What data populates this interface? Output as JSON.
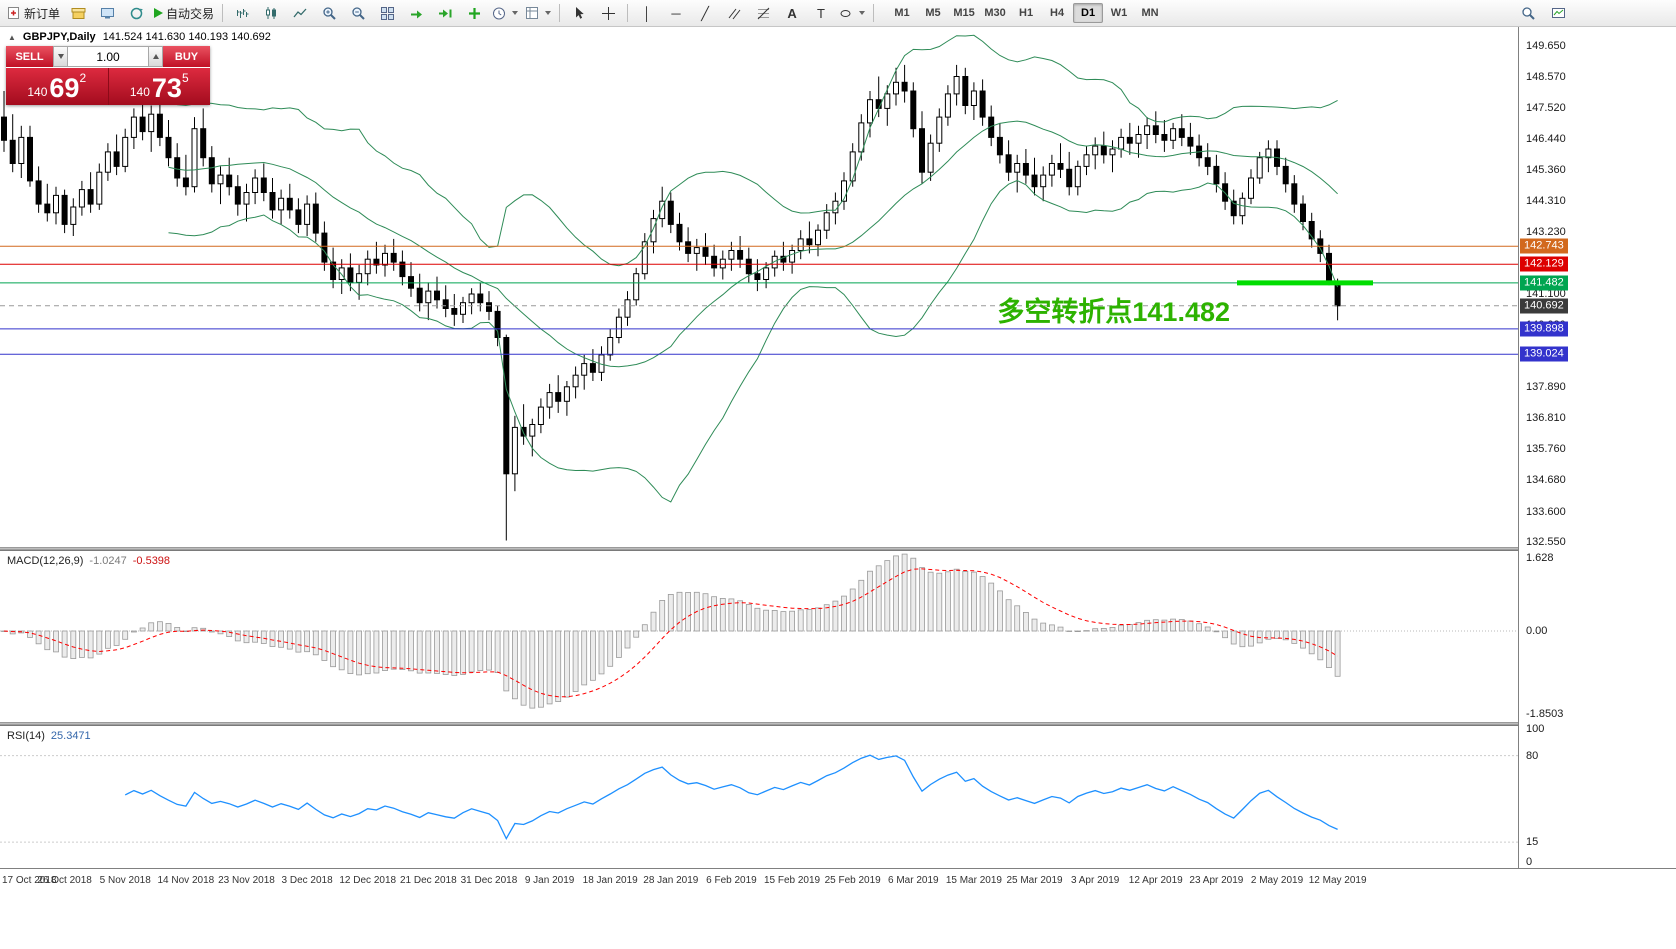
{
  "toolbar": {
    "new_order_label": "新订单",
    "auto_trading_label": "自动交易",
    "timeframes": [
      "M1",
      "M5",
      "M15",
      "M30",
      "H1",
      "H4",
      "D1",
      "W1",
      "MN"
    ],
    "active_timeframe": "D1"
  },
  "chart": {
    "symbol_title": "GBPJPY,Daily",
    "ohlc_text": "141.524 141.630 140.193 140.692",
    "annotation": {
      "text": "多空转折点141.482",
      "color": "#2db200"
    },
    "levels": [
      {
        "price": 142.743,
        "label": "142.743",
        "color": "#d2691e",
        "style": "solid"
      },
      {
        "price": 142.129,
        "label": "142.129",
        "color": "#dd0000",
        "style": "solid"
      },
      {
        "price": 141.482,
        "label": "141.482",
        "color": "#00a551",
        "style": "solid"
      },
      {
        "price": 140.692,
        "label": "140.692",
        "color": "#3b3b3b",
        "style": "dashed",
        "line_color": "#999999"
      },
      {
        "price": 139.898,
        "label": "139.898",
        "color": "#3333cc",
        "style": "solid"
      },
      {
        "price": 139.024,
        "label": "139.024",
        "color": "#3333cc",
        "style": "solid"
      }
    ],
    "highlight_segment": {
      "price": 141.482,
      "color": "#00dd00"
    },
    "y_axis_labels": [
      "149.650",
      "148.570",
      "147.520",
      "146.440",
      "145.360",
      "144.310",
      "143.230",
      "142.150",
      "141.100",
      "140.020",
      "138.940",
      "137.890",
      "136.810",
      "135.760",
      "134.680",
      "133.600",
      "132.550"
    ]
  },
  "trade_panel": {
    "sell_label": "SELL",
    "buy_label": "BUY",
    "volume": "1.00",
    "sell_price": {
      "prefix": "140",
      "big": "69",
      "sup": "2"
    },
    "buy_price": {
      "prefix": "140",
      "big": "73",
      "sup": "5"
    }
  },
  "macd": {
    "name": "MACD(12,26,9)",
    "main_value": "-1.0247",
    "signal_value": "-0.5398",
    "axis": [
      "1.628",
      "0.00",
      "-1.8503"
    ]
  },
  "rsi": {
    "name": "RSI(14)",
    "value": "25.3471",
    "axis": [
      "100",
      "80",
      "15",
      "0"
    ]
  },
  "chart_data": {
    "type": "candlestick",
    "symbol": "GBPJPY",
    "timeframe": "Daily",
    "y_range": [
      132.55,
      149.65
    ],
    "bars_per_label": 7,
    "x_labels": [
      "17 Oct 2018",
      "26 Oct 2018",
      "5 Nov 2018",
      "14 Nov 2018",
      "23 Nov 2018",
      "3 Dec 2018",
      "12 Dec 2018",
      "21 Dec 2018",
      "31 Dec 2018",
      "9 Jan 2019",
      "18 Jan 2019",
      "28 Jan 2019",
      "6 Feb 2019",
      "15 Feb 2019",
      "25 Feb 2019",
      "6 Mar 2019",
      "15 Mar 2019",
      "25 Mar 2019",
      "3 Apr 2019",
      "12 Apr 2019",
      "23 Apr 2019",
      "2 May 2019",
      "12 May 2019"
    ],
    "candles": [
      [
        147.2,
        148.1,
        146.0,
        146.4
      ],
      [
        146.4,
        147.3,
        145.3,
        145.6
      ],
      [
        145.6,
        146.9,
        145.1,
        146.5
      ],
      [
        146.5,
        146.9,
        144.8,
        145.0
      ],
      [
        145.0,
        145.5,
        143.9,
        144.2
      ],
      [
        144.2,
        144.9,
        143.6,
        143.9
      ],
      [
        143.9,
        144.8,
        143.5,
        144.5
      ],
      [
        144.5,
        144.7,
        143.2,
        143.5
      ],
      [
        143.5,
        144.4,
        143.1,
        144.1
      ],
      [
        144.1,
        145.0,
        143.8,
        144.7
      ],
      [
        144.7,
        145.3,
        143.9,
        144.2
      ],
      [
        144.2,
        145.6,
        144.0,
        145.3
      ],
      [
        145.3,
        146.3,
        145.0,
        146.0
      ],
      [
        146.0,
        146.6,
        145.2,
        145.5
      ],
      [
        145.5,
        146.8,
        145.3,
        146.5
      ],
      [
        146.5,
        147.5,
        146.1,
        147.2
      ],
      [
        147.2,
        147.9,
        146.4,
        146.7
      ],
      [
        146.7,
        147.6,
        146.0,
        147.3
      ],
      [
        147.3,
        147.8,
        146.2,
        146.5
      ],
      [
        146.5,
        147.1,
        145.5,
        145.8
      ],
      [
        145.8,
        146.3,
        144.8,
        145.1
      ],
      [
        145.1,
        145.9,
        144.5,
        144.8
      ],
      [
        144.8,
        147.2,
        144.6,
        146.8
      ],
      [
        146.8,
        147.5,
        145.5,
        145.8
      ],
      [
        145.8,
        146.2,
        144.6,
        144.9
      ],
      [
        144.9,
        145.5,
        144.2,
        145.2
      ],
      [
        145.2,
        145.8,
        144.5,
        144.8
      ],
      [
        144.8,
        145.2,
        143.8,
        144.2
      ],
      [
        144.2,
        144.9,
        143.6,
        144.6
      ],
      [
        144.6,
        145.4,
        144.2,
        145.1
      ],
      [
        145.1,
        145.6,
        144.3,
        144.6
      ],
      [
        144.6,
        145.1,
        143.7,
        144.0
      ],
      [
        144.0,
        144.7,
        143.5,
        144.4
      ],
      [
        144.4,
        144.9,
        143.7,
        144.0
      ],
      [
        144.0,
        144.4,
        143.2,
        143.5
      ],
      [
        143.5,
        144.5,
        143.1,
        144.2
      ],
      [
        144.2,
        144.6,
        142.9,
        143.2
      ],
      [
        143.2,
        143.6,
        141.9,
        142.2
      ],
      [
        142.2,
        142.7,
        141.3,
        141.6
      ],
      [
        141.6,
        142.3,
        141.1,
        142.0
      ],
      [
        142.0,
        142.5,
        141.2,
        141.5
      ],
      [
        141.5,
        142.1,
        140.9,
        141.8
      ],
      [
        141.8,
        142.6,
        141.4,
        142.3
      ],
      [
        142.3,
        142.9,
        141.8,
        142.1
      ],
      [
        142.1,
        142.8,
        141.7,
        142.5
      ],
      [
        142.5,
        143.0,
        141.9,
        142.2
      ],
      [
        142.2,
        142.6,
        141.4,
        141.7
      ],
      [
        141.7,
        142.2,
        141.0,
        141.3
      ],
      [
        141.3,
        141.8,
        140.5,
        140.8
      ],
      [
        140.8,
        141.5,
        140.2,
        141.2
      ],
      [
        141.2,
        141.7,
        140.6,
        140.9
      ],
      [
        140.9,
        141.4,
        140.3,
        140.6
      ],
      [
        140.6,
        141.1,
        140.0,
        140.4
      ],
      [
        140.4,
        141.0,
        140.1,
        140.8
      ],
      [
        140.8,
        141.3,
        140.4,
        141.1
      ],
      [
        141.1,
        141.5,
        140.5,
        140.8
      ],
      [
        140.8,
        141.2,
        140.2,
        140.5
      ],
      [
        140.5,
        140.7,
        139.3,
        139.6
      ],
      [
        139.6,
        139.7,
        132.6,
        134.9
      ],
      [
        134.9,
        136.9,
        134.3,
        136.5
      ],
      [
        136.5,
        137.3,
        135.9,
        136.2
      ],
      [
        136.2,
        136.8,
        135.5,
        136.6
      ],
      [
        136.6,
        137.5,
        136.3,
        137.2
      ],
      [
        137.2,
        138.0,
        136.8,
        137.7
      ],
      [
        137.7,
        138.3,
        137.0,
        137.4
      ],
      [
        137.4,
        138.1,
        136.9,
        137.9
      ],
      [
        137.9,
        138.6,
        137.5,
        138.3
      ],
      [
        138.3,
        139.0,
        137.8,
        138.7
      ],
      [
        138.7,
        139.2,
        138.1,
        138.4
      ],
      [
        138.4,
        139.3,
        138.1,
        139.0
      ],
      [
        139.0,
        139.9,
        138.8,
        139.6
      ],
      [
        139.6,
        140.6,
        139.4,
        140.3
      ],
      [
        140.3,
        141.2,
        140.0,
        140.9
      ],
      [
        140.9,
        142.0,
        140.7,
        141.8
      ],
      [
        141.8,
        143.2,
        141.6,
        142.9
      ],
      [
        142.9,
        144.0,
        142.5,
        143.7
      ],
      [
        143.7,
        144.8,
        143.4,
        144.3
      ],
      [
        144.3,
        144.6,
        143.2,
        143.5
      ],
      [
        143.5,
        143.9,
        142.6,
        142.9
      ],
      [
        142.9,
        143.4,
        142.2,
        142.5
      ],
      [
        142.5,
        143.0,
        141.9,
        142.7
      ],
      [
        142.7,
        143.2,
        142.1,
        142.4
      ],
      [
        142.4,
        142.8,
        141.7,
        142.0
      ],
      [
        142.0,
        142.6,
        141.6,
        142.3
      ],
      [
        142.3,
        142.9,
        141.9,
        142.6
      ],
      [
        142.6,
        143.1,
        142.0,
        142.3
      ],
      [
        142.3,
        142.7,
        141.5,
        141.8
      ],
      [
        141.8,
        142.3,
        141.2,
        141.6
      ],
      [
        141.6,
        142.2,
        141.3,
        142.0
      ],
      [
        142.0,
        142.6,
        141.7,
        142.4
      ],
      [
        142.4,
        142.9,
        141.9,
        142.2
      ],
      [
        142.2,
        142.8,
        141.8,
        142.6
      ],
      [
        142.6,
        143.3,
        142.3,
        143.0
      ],
      [
        143.0,
        143.6,
        142.5,
        142.8
      ],
      [
        142.8,
        143.5,
        142.4,
        143.3
      ],
      [
        143.3,
        144.2,
        143.0,
        143.9
      ],
      [
        143.9,
        144.6,
        143.5,
        144.3
      ],
      [
        144.3,
        145.3,
        144.0,
        145.0
      ],
      [
        145.0,
        146.3,
        144.8,
        146.0
      ],
      [
        146.0,
        147.3,
        145.7,
        147.0
      ],
      [
        147.0,
        148.1,
        146.5,
        147.8
      ],
      [
        147.8,
        148.6,
        147.2,
        147.5
      ],
      [
        147.5,
        148.3,
        146.9,
        148.0
      ],
      [
        148.0,
        148.9,
        147.6,
        148.4
      ],
      [
        148.4,
        149.0,
        147.7,
        148.1
      ],
      [
        148.1,
        148.4,
        146.5,
        146.8
      ],
      [
        146.8,
        147.4,
        144.9,
        145.3
      ],
      [
        145.3,
        146.6,
        145.0,
        146.3
      ],
      [
        146.3,
        147.5,
        146.0,
        147.2
      ],
      [
        147.2,
        148.3,
        146.9,
        148.0
      ],
      [
        148.0,
        149.0,
        147.6,
        148.6
      ],
      [
        148.6,
        148.9,
        147.3,
        147.6
      ],
      [
        147.6,
        148.4,
        147.1,
        148.1
      ],
      [
        148.1,
        148.5,
        146.9,
        147.2
      ],
      [
        147.2,
        147.6,
        146.2,
        146.5
      ],
      [
        146.5,
        147.0,
        145.6,
        145.9
      ],
      [
        145.9,
        146.4,
        145.0,
        145.3
      ],
      [
        145.3,
        145.9,
        144.6,
        145.6
      ],
      [
        145.6,
        146.1,
        144.9,
        145.2
      ],
      [
        145.2,
        145.8,
        144.5,
        144.8
      ],
      [
        144.8,
        145.5,
        144.3,
        145.2
      ],
      [
        145.2,
        145.9,
        144.8,
        145.6
      ],
      [
        145.6,
        146.3,
        145.1,
        145.4
      ],
      [
        145.4,
        146.0,
        144.5,
        144.8
      ],
      [
        144.8,
        145.7,
        144.5,
        145.5
      ],
      [
        145.5,
        146.2,
        145.2,
        145.9
      ],
      [
        145.9,
        146.5,
        145.4,
        146.2
      ],
      [
        146.2,
        146.7,
        145.6,
        145.9
      ],
      [
        145.9,
        146.4,
        145.3,
        146.1
      ],
      [
        146.1,
        146.8,
        145.8,
        146.5
      ],
      [
        146.5,
        147.0,
        145.9,
        146.3
      ],
      [
        146.3,
        146.9,
        145.8,
        146.6
      ],
      [
        146.6,
        147.2,
        146.1,
        146.9
      ],
      [
        146.9,
        147.4,
        146.3,
        146.6
      ],
      [
        146.6,
        147.1,
        146.0,
        146.4
      ],
      [
        146.4,
        147.0,
        146.1,
        146.8
      ],
      [
        146.8,
        147.3,
        146.2,
        146.5
      ],
      [
        146.5,
        147.0,
        145.9,
        146.2
      ],
      [
        146.2,
        146.6,
        145.5,
        145.8
      ],
      [
        145.8,
        146.3,
        145.2,
        145.5
      ],
      [
        145.5,
        145.9,
        144.6,
        144.9
      ],
      [
        144.9,
        145.3,
        144.0,
        144.3
      ],
      [
        144.3,
        144.7,
        143.5,
        143.8
      ],
      [
        143.8,
        144.6,
        143.5,
        144.4
      ],
      [
        144.4,
        145.4,
        144.2,
        145.1
      ],
      [
        145.1,
        146.0,
        144.9,
        145.8
      ],
      [
        145.8,
        146.4,
        145.3,
        146.1
      ],
      [
        146.1,
        146.4,
        145.2,
        145.5
      ],
      [
        145.5,
        145.8,
        144.6,
        144.9
      ],
      [
        144.9,
        145.2,
        143.9,
        144.2
      ],
      [
        144.2,
        144.5,
        143.3,
        143.6
      ],
      [
        143.6,
        143.9,
        142.7,
        143.0
      ],
      [
        143.0,
        143.3,
        142.2,
        142.5
      ],
      [
        142.5,
        142.8,
        141.4,
        141.524
      ],
      [
        141.524,
        141.63,
        140.193,
        140.692
      ]
    ],
    "overlays": {
      "bollinger": {
        "period": 20,
        "deviation": 2,
        "color": "#2e8b57"
      }
    },
    "panels": [
      {
        "type": "macd",
        "params": [
          12,
          26,
          9
        ],
        "histogram_color": "#ececec",
        "signal_color": "#ff0000",
        "y_axis": [
          1.628,
          0,
          -1.8503
        ]
      },
      {
        "type": "rsi",
        "params": [
          14
        ],
        "line_color": "#1e90ff",
        "levels": [
          80,
          15
        ],
        "y_axis": [
          100,
          80,
          15,
          0
        ]
      }
    ]
  }
}
